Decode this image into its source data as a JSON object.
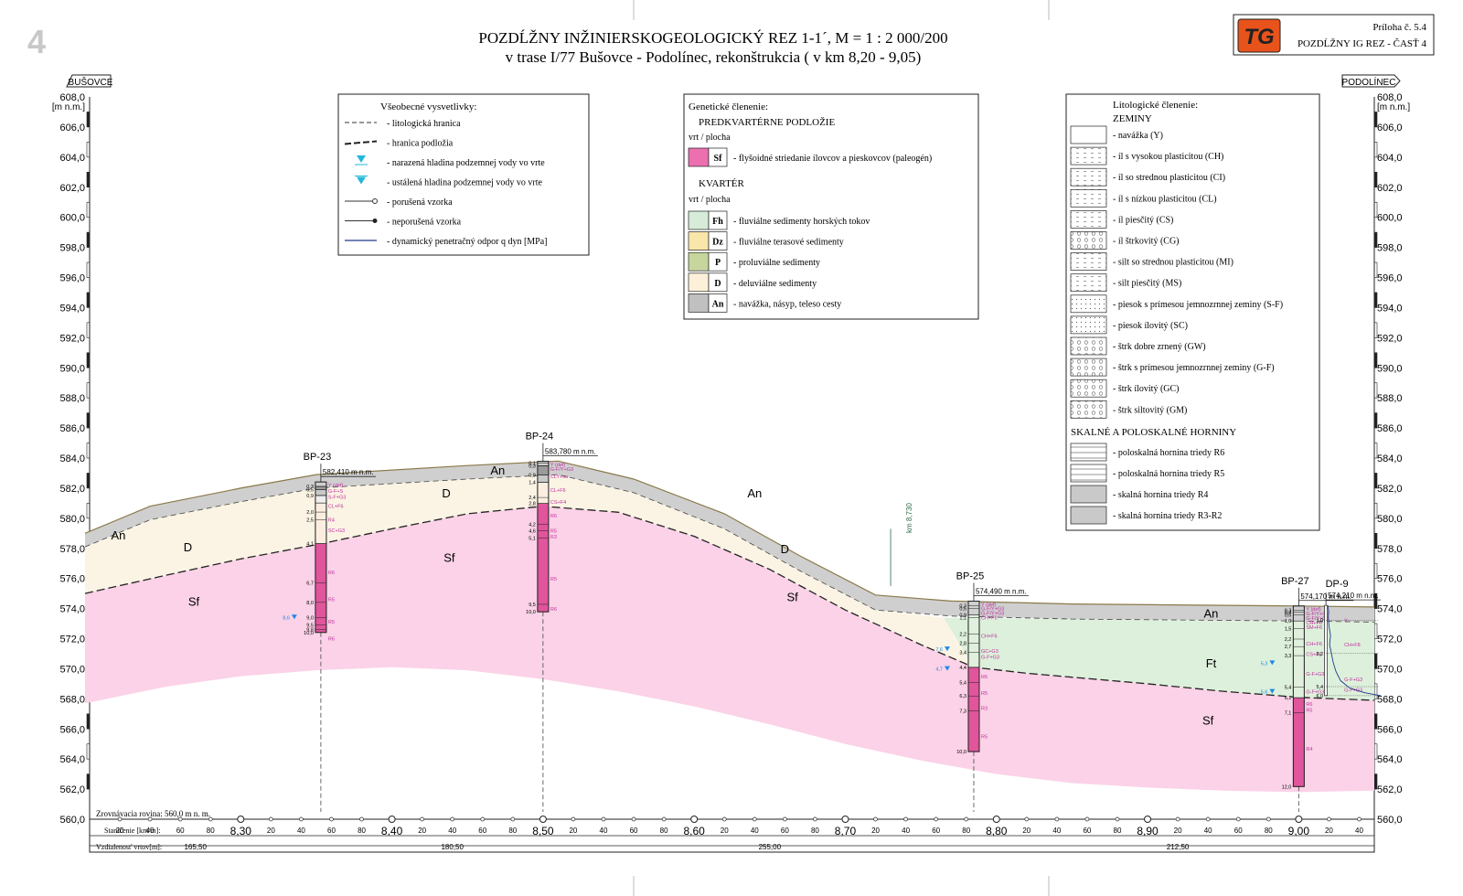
{
  "page_number": "4",
  "title": {
    "line1": "POZDĹŽNY INŽINIERSKOGEOLOGICKÝ REZ 1-1´, M = 1 : 2 000/200",
    "line2": "v trase  I/77 Bušovce - Podolínec, rekonštrukcia ( v km 8,20 - 9,05)"
  },
  "logo": {
    "text": "TG",
    "color": "#e8531b"
  },
  "attachment": {
    "number": "Príloha č. 5.4",
    "name": "POZDĹŽNY IG REZ - ČASŤ 4"
  },
  "directions": {
    "left": "BUŠOVCE",
    "right": "PODOLÍNEC"
  },
  "axis": {
    "unit": "[m n.m.]",
    "top_label": "608,0",
    "ticks": [
      "606,0",
      "604,0",
      "602,0",
      "600,0",
      "598,0",
      "596,0",
      "594,0",
      "592,0",
      "590,0",
      "588,0",
      "586,0",
      "584,0",
      "582,0",
      "580,0",
      "578,0",
      "576,0",
      "574,0",
      "572,0",
      "570,0",
      "568,0",
      "566,0",
      "564,0",
      "562,0",
      "560,0"
    ]
  },
  "general_legend": {
    "heading": "Všeobecné vysvetlivky:",
    "items": [
      {
        "symbol": "dash-line",
        "label": "- litologická hranica"
      },
      {
        "symbol": "heavy-dash-line",
        "label": "- hranica podložia"
      },
      {
        "symbol": "water-reached-icon",
        "label": "- narazená hladina podzemnej vody vo vrte"
      },
      {
        "symbol": "water-steady-icon",
        "label": "- ustálená hladina podzemnej vody vo vrte"
      },
      {
        "symbol": "open-circle-line",
        "label": "- porušená vzorka"
      },
      {
        "symbol": "filled-circle-line",
        "label": "- neporušená vzorka"
      },
      {
        "symbol": "blue-line",
        "label": "- dynamický penetračný odpor q dyn [MPa]"
      }
    ]
  },
  "genetic_legend": {
    "heading": "Genetické členenie:",
    "pre_quaternary": "PREDKVARTÉRNE PODLOŽIE",
    "pre_sub": "vrt / plocha",
    "pre_items": [
      {
        "code": "Sf",
        "color": "#ec6fb0",
        "label": "- flyšoidné striedanie ílovcov a pieskovcov (paleogén)"
      }
    ],
    "quaternary": "KVARTÉR",
    "q_sub": "vrt / plocha",
    "q_items": [
      {
        "code": "Fh",
        "color": "#d6ecd8",
        "label": "- fluviálne sedimenty horských tokov"
      },
      {
        "code": "Dz",
        "color": "#f9e6aa",
        "label": "- fluviálne terasové sedimenty"
      },
      {
        "code": "P",
        "color": "#c6d69c",
        "label": "- proluviálne sedimenty"
      },
      {
        "code": "D",
        "color": "#fcf0d8",
        "label": "- deluviálne sedimenty"
      },
      {
        "code": "An",
        "color": "#c0c0c0",
        "label": "- navážka, násyp, teleso cesty"
      }
    ]
  },
  "litho_legend": {
    "heading": "Litologické členenie:",
    "soils_heading": "ZEMINY",
    "soils": [
      {
        "pattern": "crosshatch",
        "label": "- navážka (Y)"
      },
      {
        "pattern": "dash",
        "label": "- íl s vysokou plasticitou (CH)"
      },
      {
        "pattern": "dash",
        "label": "- íl so strednou plasticitou (CI)"
      },
      {
        "pattern": "dash",
        "label": "- íl s nízkou plasticitou (CL)"
      },
      {
        "pattern": "dash",
        "label": "- íl piesčitý (CS)"
      },
      {
        "pattern": "circle",
        "label": "- íl štrkovitý (CG)"
      },
      {
        "pattern": "dash",
        "label": "- silt so strednou plasticitou (MI)"
      },
      {
        "pattern": "dash",
        "label": "- silt piesčitý (MS)"
      },
      {
        "pattern": "dot",
        "label": "- piesok s prímesou jemnozrnnej zeminy (S-F)"
      },
      {
        "pattern": "dot",
        "label": "- piesok ílovitý (SC)"
      },
      {
        "pattern": "circle",
        "label": "- štrk dobre zrnený (GW)"
      },
      {
        "pattern": "circle",
        "label": "- štrk s prímesou jemnozrnnej zeminy (G-F)"
      },
      {
        "pattern": "circle",
        "label": "- štrk ílovitý (GC)"
      },
      {
        "pattern": "circle",
        "label": "- štrk siltovitý (GM)"
      }
    ],
    "rocks_heading": "SKALNÉ A POLOSKALNÉ HORNINY",
    "rocks": [
      {
        "pattern": "hline",
        "label": "- poloskalná hornina triedy R6"
      },
      {
        "pattern": "hline",
        "label": "- poloskalná hornina triedy R5"
      },
      {
        "pattern": "solid",
        "label": "- skalná hornina triedy R4"
      },
      {
        "pattern": "solid",
        "label": "- skalná hornina triedy R3-R2"
      }
    ]
  },
  "profile": {
    "x_range_km": [
      8.2,
      9.05
    ],
    "y_range_m": [
      560,
      608
    ],
    "surface": [
      [
        8.197,
        579.0
      ],
      [
        8.24,
        580.8
      ],
      [
        8.3,
        582.0
      ],
      [
        8.35,
        582.9
      ],
      [
        8.45,
        583.5
      ],
      [
        8.51,
        583.8
      ],
      [
        8.56,
        582.6
      ],
      [
        8.62,
        580.3
      ],
      [
        8.67,
        577.5
      ],
      [
        8.72,
        574.9
      ],
      [
        8.77,
        574.5
      ],
      [
        8.85,
        574.3
      ],
      [
        9.0,
        574.17
      ],
      [
        9.05,
        574.1
      ]
    ],
    "unit_labels": [
      {
        "text": "An",
        "km": 8.219,
        "m": 578.9
      },
      {
        "text": "D",
        "km": 8.265,
        "m": 578.1
      },
      {
        "text": "Sf",
        "km": 8.269,
        "m": 574.5
      },
      {
        "text": "D",
        "km": 8.436,
        "m": 581.7
      },
      {
        "text": "Sf",
        "km": 8.438,
        "m": 577.4
      },
      {
        "text": "An",
        "km": 8.47,
        "m": 583.2
      },
      {
        "text": "An",
        "km": 8.64,
        "m": 581.7
      },
      {
        "text": "D",
        "km": 8.66,
        "m": 578.0
      },
      {
        "text": "Sf",
        "km": 8.665,
        "m": 574.8
      },
      {
        "text": "An",
        "km": 8.942,
        "m": 573.7
      },
      {
        "text": "Ft",
        "km": 8.942,
        "m": 570.4
      },
      {
        "text": "Sf",
        "km": 8.94,
        "m": 566.6
      }
    ],
    "km_marker": "km 8,730",
    "reference_plane": "Zrovnávacia rovina: 560,0 m n. m.",
    "stationing_label": "Staničenie [km/m]:",
    "distance_label": "Vzdialenosť vrtov[m]:",
    "major_stations": [
      "8,30",
      "8,40",
      "8,50",
      "8,60",
      "8,70",
      "8,80",
      "8,90",
      "9,00"
    ],
    "minor_stations": [
      "20",
      "40",
      "60",
      "80"
    ],
    "distances": [
      {
        "text": "165,50",
        "km": 8.27
      },
      {
        "text": "180,50",
        "km": 8.44
      },
      {
        "text": "255,00",
        "km": 8.65
      },
      {
        "text": "212,50",
        "km": 8.92
      }
    ],
    "boreholes": [
      {
        "name": "BP-23",
        "km": 8.353,
        "elev": 582.41,
        "elev_label": "582,410 m n.m.",
        "depth": 10.0,
        "layers": [
          [
            0,
            0.3,
            "#d0d0d0"
          ],
          [
            0.3,
            0.5,
            "#9a9a9a"
          ],
          [
            0.5,
            0.9,
            "#c8c8c8"
          ],
          [
            0.9,
            1.4,
            "#eeeeee"
          ],
          [
            1.4,
            4.1,
            "#fbeee0"
          ],
          [
            4.1,
            10.0,
            "#e0559b"
          ]
        ],
        "depth_labels": [
          "0,3",
          "0,5",
          "0,9",
          "2,0",
          "2,5",
          "4,1",
          "6,7",
          "8,0",
          "9,0",
          "9,5",
          "9,8",
          "10,0"
        ],
        "depth_values": [
          0.3,
          0.5,
          0.9,
          2.0,
          2.5,
          4.1,
          6.7,
          8.0,
          9.0,
          9.5,
          9.8,
          10.0
        ],
        "side_labels": [
          [
            "Y (def)",
            0.2
          ],
          [
            "G-F+S",
            0.6
          ],
          [
            "S-F+G3",
            1.0
          ],
          [
            "CL+F6",
            1.6
          ],
          [
            "R4",
            2.5
          ],
          [
            "SC+G3",
            3.2
          ],
          [
            "R6",
            6.0
          ],
          [
            "R5",
            7.8
          ],
          [
            "R5",
            9.3
          ],
          [
            "R6",
            10.4
          ]
        ],
        "water": [
          [
            "8,6",
            9.0
          ]
        ]
      },
      {
        "name": "BP-24",
        "km": 8.5,
        "elev": 583.78,
        "elev_label": "583,780 m n.m.",
        "depth": 10.0,
        "layers": [
          [
            0,
            0.3,
            "#d0d0d0"
          ],
          [
            0.3,
            0.9,
            "#9a9a9a"
          ],
          [
            0.9,
            1.4,
            "#c8c8c8"
          ],
          [
            1.4,
            2.8,
            "#fbeee0"
          ],
          [
            2.8,
            10.0,
            "#e0559b"
          ]
        ],
        "depth_labels": [
          "0,1",
          "0,3",
          "0,9",
          "1,4",
          "2,4",
          "2,8",
          "4,2",
          "4,6",
          "5,1",
          "9,5",
          "10,0"
        ],
        "depth_values": [
          0.1,
          0.3,
          0.9,
          1.4,
          2.4,
          2.8,
          4.2,
          4.6,
          5.1,
          9.5,
          10.0
        ],
        "side_labels": [
          [
            "Y (def)",
            0.2
          ],
          [
            "G-F/Y+G3",
            0.5
          ],
          [
            "CLY+sa",
            1.0
          ],
          [
            "CL+F6",
            1.9
          ],
          [
            "CS+F4",
            2.7
          ],
          [
            "R6",
            3.6
          ],
          [
            "R5",
            4.6
          ],
          [
            "R3",
            5.0
          ],
          [
            "R5",
            7.8
          ],
          [
            "R6",
            9.8
          ]
        ],
        "water": []
      },
      {
        "name": "BP-25",
        "km": 8.785,
        "elev": 574.49,
        "elev_label": "574,490 m n.m.",
        "depth": 10.0,
        "layers": [
          [
            0,
            0.9,
            "#d0d0d0"
          ],
          [
            0.9,
            4.4,
            "#e0f0dd"
          ],
          [
            4.4,
            10.0,
            "#e0559b"
          ]
        ],
        "depth_labels": [
          "0,3",
          "0,5",
          "0,9",
          "1,1",
          "2,2",
          "2,8",
          "3,4",
          "4,4",
          "5,4",
          "6,3",
          "7,3",
          "10,0"
        ],
        "depth_values": [
          0.3,
          0.5,
          0.9,
          1.1,
          2.2,
          2.8,
          3.4,
          4.4,
          5.4,
          6.3,
          7.3,
          10.0
        ],
        "side_labels": [
          [
            "Y (def)",
            0.2
          ],
          [
            "G-F/Y+G3",
            0.5
          ],
          [
            "G-F/Y+G3",
            0.8
          ],
          [
            "CH+F6",
            1.1
          ],
          [
            "CH+F6",
            2.3
          ],
          [
            "GC+G3",
            3.3
          ],
          [
            "G-F+G3",
            3.7
          ],
          [
            "R6",
            5.0
          ],
          [
            "R5",
            6.1
          ],
          [
            "R3",
            7.1
          ],
          [
            "R5",
            9.0
          ]
        ],
        "water": [
          [
            "7,6",
            3.2
          ],
          [
            "4,7",
            4.5
          ]
        ]
      },
      {
        "name": "BP-27",
        "km": 9.0,
        "elev": 574.17,
        "elev_label": "574,170 m n.m.",
        "depth": 12.0,
        "layers": [
          [
            0,
            1.0,
            "#d0d0d0"
          ],
          [
            1.0,
            6.1,
            "#e0f0dd"
          ],
          [
            6.1,
            12.0,
            "#e0559b"
          ]
        ],
        "depth_labels": [
          "0,3",
          "0,4",
          "0,6",
          "1,0",
          "1,5",
          "2,2",
          "2,7",
          "3,3",
          "5,4",
          "6,1",
          "7,1",
          "12,0"
        ],
        "depth_values": [
          0.3,
          0.4,
          0.6,
          1.0,
          1.5,
          2.2,
          2.7,
          3.3,
          5.4,
          6.1,
          7.1,
          12.0
        ],
        "side_labels": [
          [
            "Y (def)",
            0.2
          ],
          [
            "G-F/Y+G3",
            0.5
          ],
          [
            "G-F/Y+G3",
            0.8
          ],
          [
            "CH+F6",
            1.1
          ],
          [
            "SM+F6",
            1.4
          ],
          [
            "CH+F6",
            2.5
          ],
          [
            "CS+F6",
            3.2
          ],
          [
            "G-F+G3",
            4.5
          ],
          [
            "G-F+G3",
            5.7
          ],
          [
            "R6",
            6.5
          ],
          [
            "R5",
            6.9
          ],
          [
            "R4",
            9.5
          ]
        ],
        "water": [
          [
            "5,3",
            3.8
          ],
          [
            "5,6",
            5.7
          ]
        ]
      }
    ],
    "penetration": {
      "name": "DP-9",
      "km": 9.018,
      "elev_label": "574,210 m n.m.",
      "depth": 6.0,
      "labels": [
        [
          "1,0",
          1.0
        ],
        [
          "3,2",
          3.2
        ],
        [
          "5,4",
          5.4
        ],
        [
          "6,0",
          6.0
        ]
      ],
      "side_labels": [
        [
          "Y",
          1.0
        ],
        [
          "CH+F8",
          2.6
        ],
        [
          "G-F+G3",
          4.9
        ],
        [
          "G-F+G3",
          5.6
        ]
      ]
    }
  }
}
